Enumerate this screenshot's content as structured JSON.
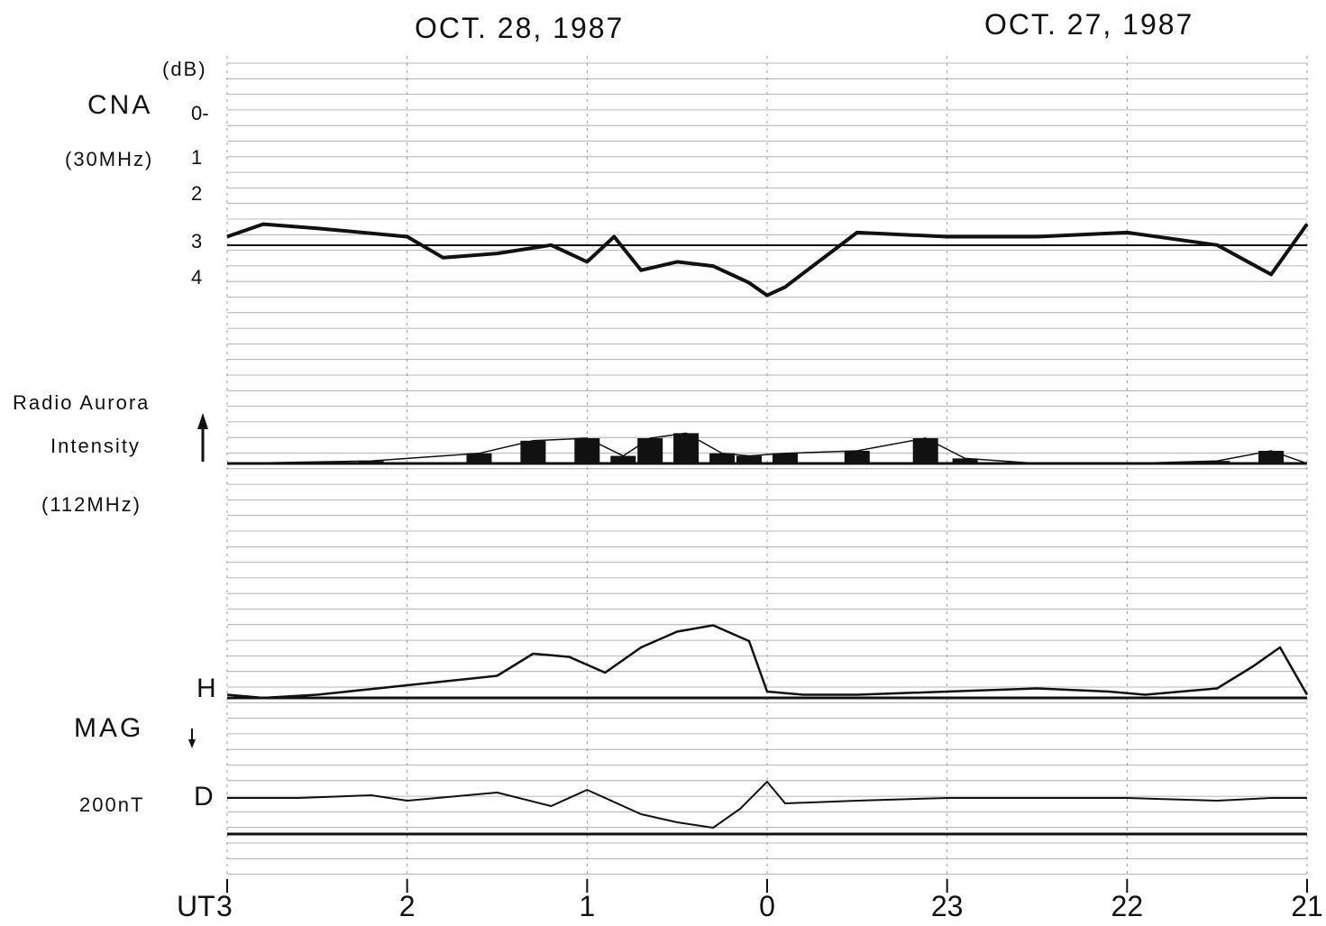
{
  "headers": {
    "left_date": "OCT. 28, 1987",
    "right_date": "OCT. 27, 1987"
  },
  "panels": {
    "cna": {
      "unit": "(dB)",
      "name": "CNA",
      "freq": "(30MHz)",
      "ticks": [
        "0-",
        "1",
        "2",
        "3",
        "4"
      ]
    },
    "radio": {
      "name": "Radio Aurora",
      "sub": "Intensity",
      "freq": "(112MHz)",
      "arrow": "up-arrow-icon"
    },
    "mag": {
      "h_label": "H",
      "name": "MAG",
      "d_label": "D",
      "scale": "200nT",
      "arrow": "down-arrow-icon"
    }
  },
  "x_axis": {
    "ut_label": "UT",
    "ticks": [
      "3",
      "2",
      "1",
      "0",
      "23",
      "22",
      "21"
    ]
  },
  "chart_data": [
    {
      "type": "line",
      "name": "CNA (30MHz)",
      "ylabel": "(dB)",
      "y_ticks": [
        0,
        1,
        2,
        3,
        4
      ],
      "y_inverted": true,
      "x_direction": "reversed",
      "x": [
        3.0,
        2.8,
        2.5,
        2.0,
        1.8,
        1.5,
        1.2,
        1.0,
        0.85,
        0.7,
        0.5,
        0.3,
        0.1,
        0.0,
        -0.1,
        -0.5,
        -1.0,
        -1.5,
        -2.0,
        -2.5,
        -2.8,
        -3.0
      ],
      "y": [
        3.0,
        2.7,
        2.8,
        3.0,
        3.5,
        3.4,
        3.2,
        3.6,
        3.0,
        3.8,
        3.6,
        3.7,
        4.1,
        4.4,
        4.2,
        2.9,
        3.0,
        3.0,
        2.9,
        3.2,
        3.9,
        2.7
      ]
    },
    {
      "type": "area",
      "name": "Radio Aurora Intensity (112MHz)",
      "x_direction": "reversed",
      "x": [
        3.0,
        2.2,
        1.6,
        1.3,
        1.0,
        0.8,
        0.65,
        0.45,
        0.25,
        0.1,
        -0.1,
        -0.5,
        -0.88,
        -1.1,
        -1.5,
        -2.0,
        -2.5,
        -2.8,
        -3.0
      ],
      "y": [
        0,
        0.1,
        0.4,
        0.9,
        1.0,
        0.3,
        1.0,
        1.2,
        0.4,
        0.3,
        0.4,
        0.5,
        1.0,
        0.2,
        0,
        0,
        0.1,
        0.5,
        0
      ]
    },
    {
      "type": "line",
      "name": "H",
      "x_direction": "reversed",
      "x": [
        3.0,
        2.8,
        2.5,
        2.0,
        1.5,
        1.3,
        1.1,
        0.9,
        0.7,
        0.5,
        0.3,
        0.1,
        0.0,
        -0.2,
        -0.5,
        -1.0,
        -1.5,
        -1.9,
        -2.1,
        -2.5,
        -2.7,
        -2.85,
        -3.0
      ],
      "y": [
        0.1,
        0.0,
        0.1,
        0.4,
        0.7,
        1.4,
        1.3,
        0.8,
        1.6,
        2.1,
        2.3,
        1.8,
        0.2,
        0.1,
        0.1,
        0.2,
        0.3,
        0.2,
        0.1,
        0.3,
        1.0,
        1.6,
        0.1
      ]
    },
    {
      "type": "line",
      "name": "D",
      "x_direction": "reversed",
      "x": [
        3.0,
        2.6,
        2.2,
        2.0,
        1.5,
        1.2,
        1.0,
        0.7,
        0.5,
        0.3,
        0.15,
        0.0,
        -0.1,
        -0.5,
        -1.0,
        -1.5,
        -2.0,
        -2.5,
        -2.8,
        -3.0
      ],
      "y": [
        0.0,
        0.0,
        0.1,
        -0.1,
        0.2,
        -0.3,
        0.3,
        -0.6,
        -0.9,
        -1.1,
        -0.4,
        0.6,
        -0.2,
        -0.1,
        0.0,
        0.0,
        0.0,
        -0.1,
        0.0,
        0.0
      ]
    }
  ]
}
